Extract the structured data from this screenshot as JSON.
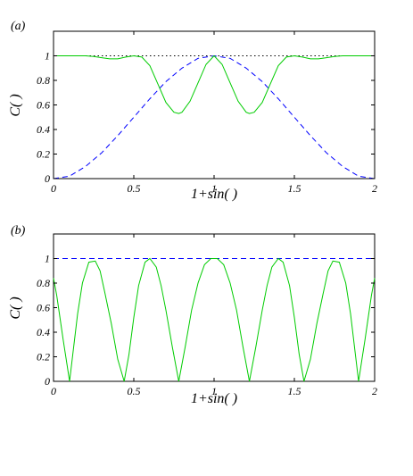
{
  "chart_data": [
    {
      "panel_label": "(a)",
      "type": "line",
      "xlabel": "1+sin(  )",
      "ylabel": "C(  )",
      "xlim": [
        0,
        2
      ],
      "ylim": [
        0,
        1.2
      ],
      "xticks": [
        "0",
        "0.5",
        "1",
        "1.5",
        "2"
      ],
      "yticks": [
        "0",
        "0.2",
        "0.4",
        "0.6",
        "0.8",
        "1"
      ],
      "series": [
        {
          "style": "dotted",
          "color": "#000000",
          "x": [
            0,
            2
          ],
          "y": [
            1,
            1
          ]
        },
        {
          "style": "dashed",
          "color": "#0000ff",
          "x": [
            0,
            0.1,
            0.2,
            0.3,
            0.4,
            0.5,
            0.6,
            0.7,
            0.8,
            0.9,
            1.0,
            1.1,
            1.2,
            1.3,
            1.4,
            1.5,
            1.6,
            1.7,
            1.8,
            1.9,
            2.0
          ],
          "y": [
            0,
            0.02,
            0.1,
            0.21,
            0.35,
            0.5,
            0.65,
            0.79,
            0.9,
            0.98,
            1.0,
            0.98,
            0.9,
            0.79,
            0.65,
            0.5,
            0.35,
            0.21,
            0.1,
            0.02,
            0
          ]
        },
        {
          "style": "solid",
          "color": "#00cc00",
          "x": [
            0,
            0.1,
            0.2,
            0.25,
            0.3,
            0.35,
            0.4,
            0.45,
            0.5,
            0.55,
            0.6,
            0.65,
            0.7,
            0.75,
            0.78,
            0.8,
            0.85,
            0.9,
            0.95,
            1.0,
            1.05,
            1.1,
            1.15,
            1.2,
            1.22,
            1.25,
            1.3,
            1.35,
            1.4,
            1.45,
            1.5,
            1.55,
            1.6,
            1.65,
            1.7,
            1.75,
            1.8,
            1.9,
            2.0
          ],
          "y": [
            1,
            1,
            1,
            0.995,
            0.985,
            0.975,
            0.975,
            0.99,
            1.0,
            0.99,
            0.92,
            0.77,
            0.62,
            0.54,
            0.53,
            0.54,
            0.63,
            0.78,
            0.93,
            1.0,
            0.93,
            0.78,
            0.63,
            0.54,
            0.53,
            0.54,
            0.62,
            0.77,
            0.92,
            0.99,
            1.0,
            0.99,
            0.975,
            0.975,
            0.985,
            0.995,
            1,
            1,
            1
          ]
        }
      ]
    },
    {
      "panel_label": "(b)",
      "type": "line",
      "xlabel": "1+sin(  )",
      "ylabel": "C(  )",
      "xlim": [
        0,
        2
      ],
      "ylim": [
        0,
        1.2
      ],
      "xticks": [
        "0",
        "0.5",
        "1",
        "1.5",
        "2"
      ],
      "yticks": [
        "0",
        "0.2",
        "0.4",
        "0.6",
        "0.8",
        "1"
      ],
      "series": [
        {
          "style": "dashed",
          "color": "#0000ff",
          "x": [
            0,
            2
          ],
          "y": [
            1,
            1
          ]
        },
        {
          "style": "solid",
          "color": "#00cc00",
          "x": [
            0,
            0.02,
            0.04,
            0.06,
            0.08,
            0.1,
            0.12,
            0.15,
            0.18,
            0.22,
            0.26,
            0.29,
            0.32,
            0.36,
            0.4,
            0.44,
            0.47,
            0.5,
            0.53,
            0.57,
            0.6,
            0.64,
            0.67,
            0.7,
            0.74,
            0.78,
            0.82,
            0.86,
            0.9,
            0.94,
            0.98,
            1.0,
            1.02,
            1.06,
            1.1,
            1.14,
            1.18,
            1.22,
            1.26,
            1.3,
            1.33,
            1.36,
            1.4,
            1.43,
            1.47,
            1.5,
            1.53,
            1.56,
            1.6,
            1.64,
            1.68,
            1.71,
            1.74,
            1.78,
            1.82,
            1.85,
            1.88,
            1.9,
            1.92,
            1.94,
            1.96,
            1.98,
            2.0
          ],
          "y": [
            0.84,
            0.7,
            0.52,
            0.34,
            0.17,
            0.0,
            0.22,
            0.55,
            0.8,
            0.97,
            0.98,
            0.9,
            0.72,
            0.47,
            0.18,
            0.0,
            0.22,
            0.52,
            0.78,
            0.97,
            1.0,
            0.93,
            0.78,
            0.58,
            0.28,
            0.0,
            0.28,
            0.58,
            0.8,
            0.95,
            1.0,
            1.0,
            1.0,
            0.95,
            0.8,
            0.58,
            0.28,
            0.0,
            0.28,
            0.58,
            0.78,
            0.93,
            1.0,
            0.97,
            0.78,
            0.52,
            0.22,
            0.0,
            0.18,
            0.47,
            0.72,
            0.9,
            0.98,
            0.97,
            0.8,
            0.55,
            0.22,
            0.0,
            0.17,
            0.34,
            0.52,
            0.7,
            0.84
          ]
        }
      ]
    }
  ]
}
